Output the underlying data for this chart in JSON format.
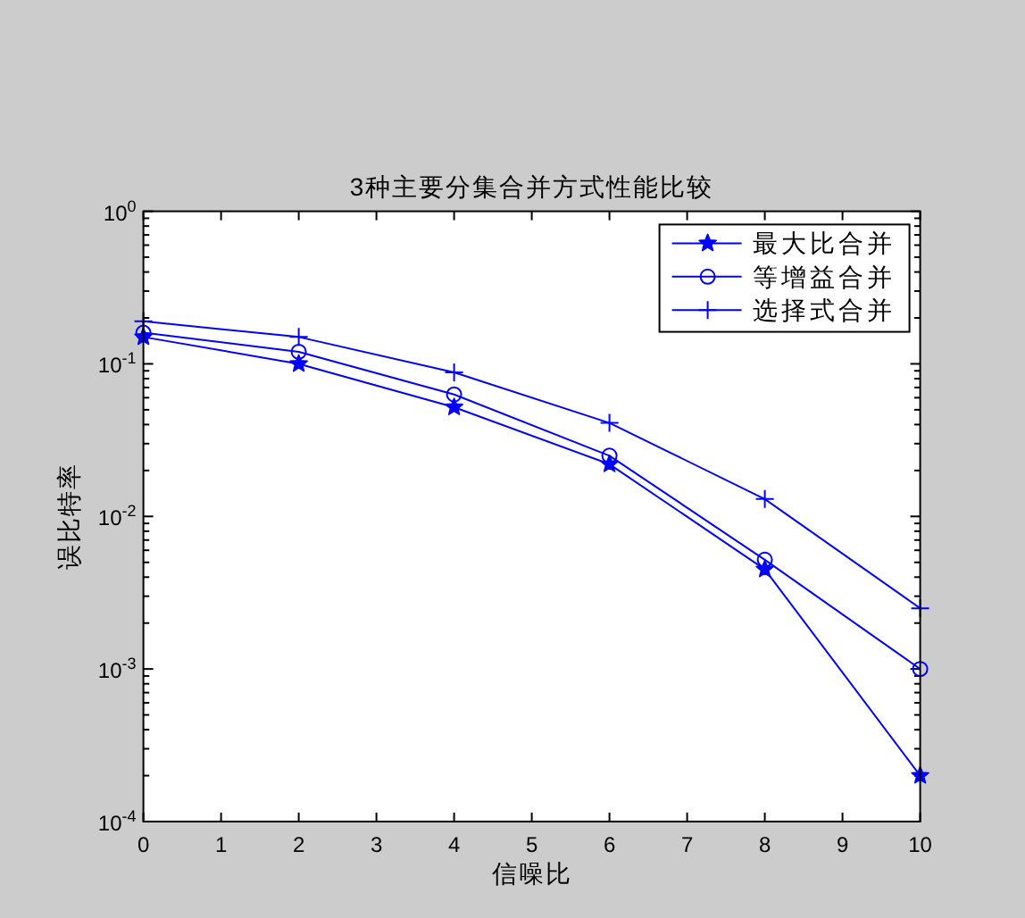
{
  "chart_data": {
    "type": "line",
    "title": "3种主要分集合并方式性能比较",
    "xlabel": "信噪比",
    "ylabel": "误比特率",
    "x": [
      0,
      2,
      4,
      6,
      8,
      10
    ],
    "xlim": [
      0,
      10
    ],
    "xticks": [
      0,
      1,
      2,
      3,
      4,
      5,
      6,
      7,
      8,
      9,
      10
    ],
    "ylim": [
      0.0001,
      1
    ],
    "yticks": [
      {
        "value": 0.0001,
        "label": "10$^{-4}$"
      },
      {
        "value": 0.0002,
        "label": null
      },
      {
        "value": 0.0003,
        "label": null
      },
      {
        "value": 0.0004,
        "label": null
      },
      {
        "value": 0.0005,
        "label": null
      },
      {
        "value": 0.0006,
        "label": null
      },
      {
        "value": 0.0007,
        "label": null
      },
      {
        "value": 0.0008,
        "label": null
      },
      {
        "value": 0.0009,
        "label": null
      },
      {
        "value": 0.001,
        "label": "10$^{-3}$"
      },
      {
        "value": 0.002,
        "label": null
      },
      {
        "value": 0.003,
        "label": null
      },
      {
        "value": 0.004,
        "label": null
      },
      {
        "value": 0.005,
        "label": null
      },
      {
        "value": 0.006,
        "label": null
      },
      {
        "value": 0.007,
        "label": null
      },
      {
        "value": 0.008,
        "label": null
      },
      {
        "value": 0.009,
        "label": null
      },
      {
        "value": 0.01,
        "label": "10$^{-2}$"
      },
      {
        "value": 0.02,
        "label": null
      },
      {
        "value": 0.03,
        "label": null
      },
      {
        "value": 0.04,
        "label": null
      },
      {
        "value": 0.05,
        "label": null
      },
      {
        "value": 0.06,
        "label": null
      },
      {
        "value": 0.07,
        "label": null
      },
      {
        "value": 0.08,
        "label": null
      },
      {
        "value": 0.09,
        "label": null
      },
      {
        "value": 0.1,
        "label": "10$^{-1}$"
      },
      {
        "value": 0.2,
        "label": null
      },
      {
        "value": 0.3,
        "label": null
      },
      {
        "value": 0.4,
        "label": null
      },
      {
        "value": 0.5,
        "label": null
      },
      {
        "value": 0.6,
        "label": null
      },
      {
        "value": 0.7,
        "label": null
      },
      {
        "value": 0.8,
        "label": null
      },
      {
        "value": 0.9,
        "label": null
      },
      {
        "value": 1,
        "label": "10$^{0}$"
      }
    ],
    "log": "y",
    "legend": "top right",
    "line_style": "solid",
    "series": [
      {
        "name": "最大比合并",
        "color": "#0000ff",
        "marker": "star",
        "values": [
          0.15,
          0.1,
          0.052,
          0.022,
          0.0045,
          0.0002
        ]
      },
      {
        "name": "等增益合并",
        "color": "#0000ff",
        "marker": "circle",
        "values": [
          0.16,
          0.12,
          0.063,
          0.025,
          0.0052,
          0.001
        ]
      },
      {
        "name": "选择式合并",
        "color": "#0000ff",
        "marker": "cross",
        "values": [
          0.19,
          0.15,
          0.088,
          0.041,
          0.013,
          0.0025
        ]
      }
    ]
  }
}
